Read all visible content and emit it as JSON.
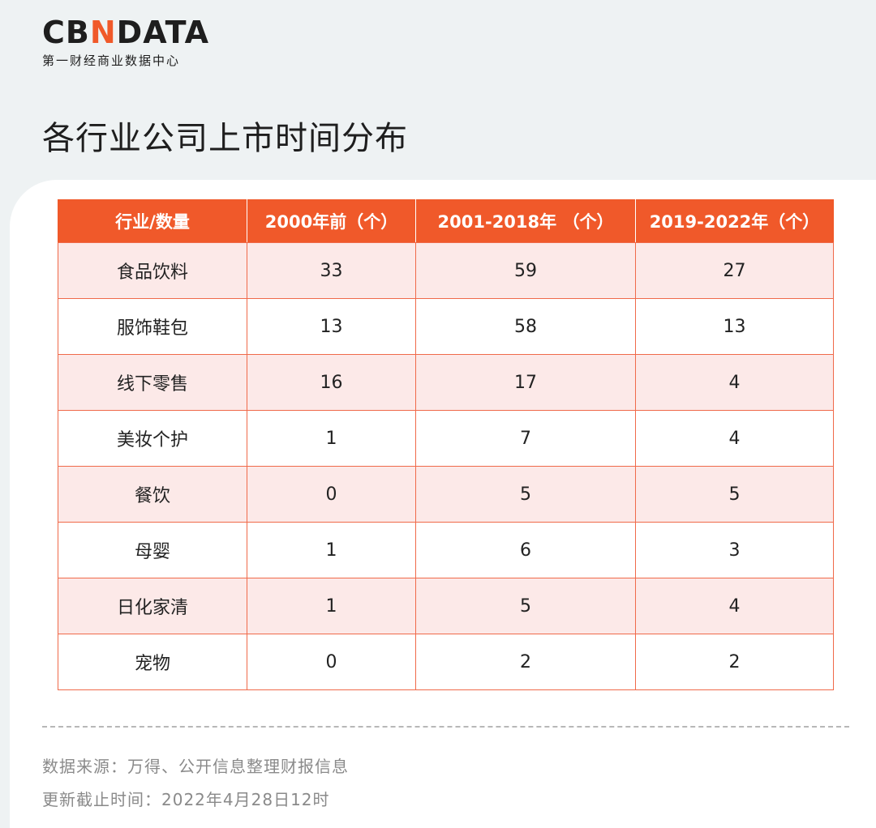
{
  "brand": {
    "logo_prefix": "CB",
    "logo_accent": "N",
    "logo_suffix": "DATA",
    "tagline": "第一财经商业数据中心"
  },
  "title": "各行业公司上市时间分布",
  "colors": {
    "accent": "#f0592a",
    "row_tint": "#fce9e8",
    "border": "#f06a4a"
  },
  "chart_data": {
    "type": "table",
    "title": "各行业公司上市时间分布",
    "columns": [
      "行业/数量",
      "2000年前（个）",
      "2001-2018年 （个）",
      "2019-2022年（个）"
    ],
    "rows": [
      [
        "食品饮料",
        "33",
        "59",
        "27"
      ],
      [
        "服饰鞋包",
        "13",
        "58",
        "13"
      ],
      [
        "线下零售",
        "16",
        "17",
        "4"
      ],
      [
        "美妆个护",
        "1",
        "7",
        "4"
      ],
      [
        "餐饮",
        "0",
        "5",
        "5"
      ],
      [
        "母婴",
        "1",
        "6",
        "3"
      ],
      [
        "日化家清",
        "1",
        "5",
        "4"
      ],
      [
        "宠物",
        "0",
        "2",
        "2"
      ]
    ]
  },
  "footer": {
    "source": "数据来源：万得、公开信息整理财报信息",
    "updated": "更新截止时间：2022年4月28日12时"
  }
}
